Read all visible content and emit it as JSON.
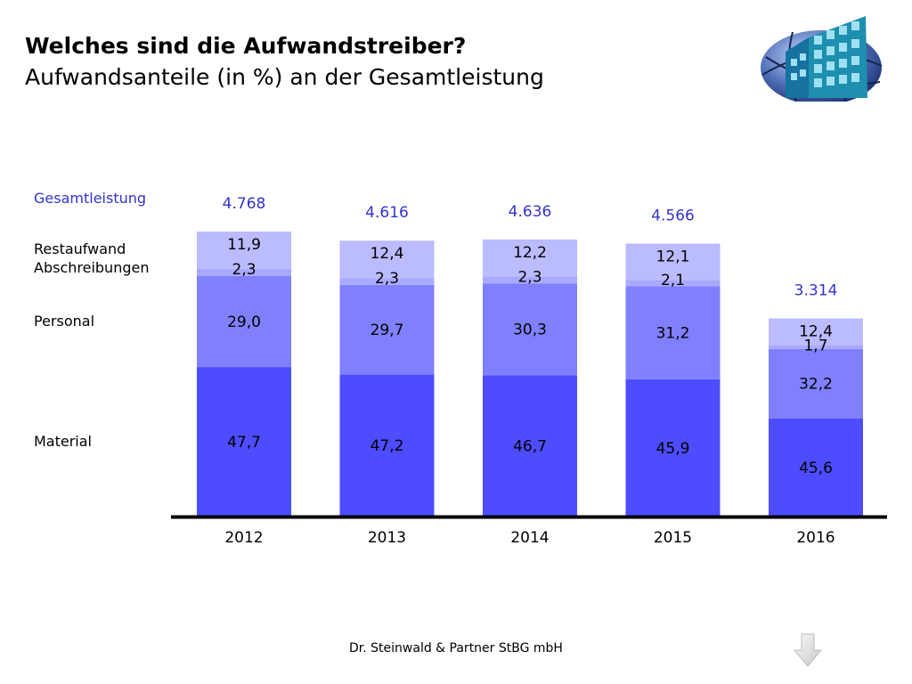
{
  "header": {
    "title": "Welches sind die Aufwandstreiber?",
    "subtitle": "Aufwandsanteile (in %) an der Gesamtleistung"
  },
  "footer": {
    "text": "Dr. Steinwald & Partner StBG mbH"
  },
  "icons": {
    "logo": "globe-building-logo",
    "nav": "arrow-down-icon"
  },
  "colors": {
    "material": "#4d4dff",
    "personal": "#8080ff",
    "abschreibungen": "#a9a9ff",
    "restaufwand": "#bbbbff",
    "total_label": "#3333cc",
    "axis": "#000000"
  },
  "chart_data": {
    "type": "bar",
    "stacked": true,
    "categories": [
      "2012",
      "2013",
      "2014",
      "2015",
      "2016"
    ],
    "series": [
      {
        "name": "Material",
        "values": [
          "47,7",
          "47,2",
          "46,7",
          "45,9",
          "45,6"
        ]
      },
      {
        "name": "Personal",
        "values": [
          "29,0",
          "29,7",
          "30,3",
          "31,2",
          "32,2"
        ]
      },
      {
        "name": "Abschreibungen",
        "values": [
          "2,3",
          "2,3",
          "2,3",
          "2,1",
          "1,7"
        ]
      },
      {
        "name": "Restaufwand",
        "values": [
          "11,9",
          "12,4",
          "12,2",
          "12,1",
          "12,4"
        ]
      }
    ],
    "totals_label": "Gesamtleistung",
    "totals": [
      "4.768",
      "4.616",
      "4.636",
      "4.566",
      "3.314"
    ],
    "unit": "%"
  }
}
